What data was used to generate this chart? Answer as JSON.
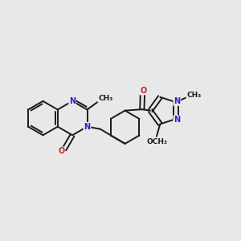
{
  "bg_color": "#e8e8e8",
  "bond_color": "#1a1a1a",
  "N_color": "#2222cc",
  "O_color": "#cc2222",
  "font_size": 7.0,
  "bond_width": 1.4,
  "figsize": [
    3.0,
    3.0
  ],
  "dpi": 100,
  "xlim": [
    0,
    10
  ],
  "ylim": [
    1,
    9
  ]
}
